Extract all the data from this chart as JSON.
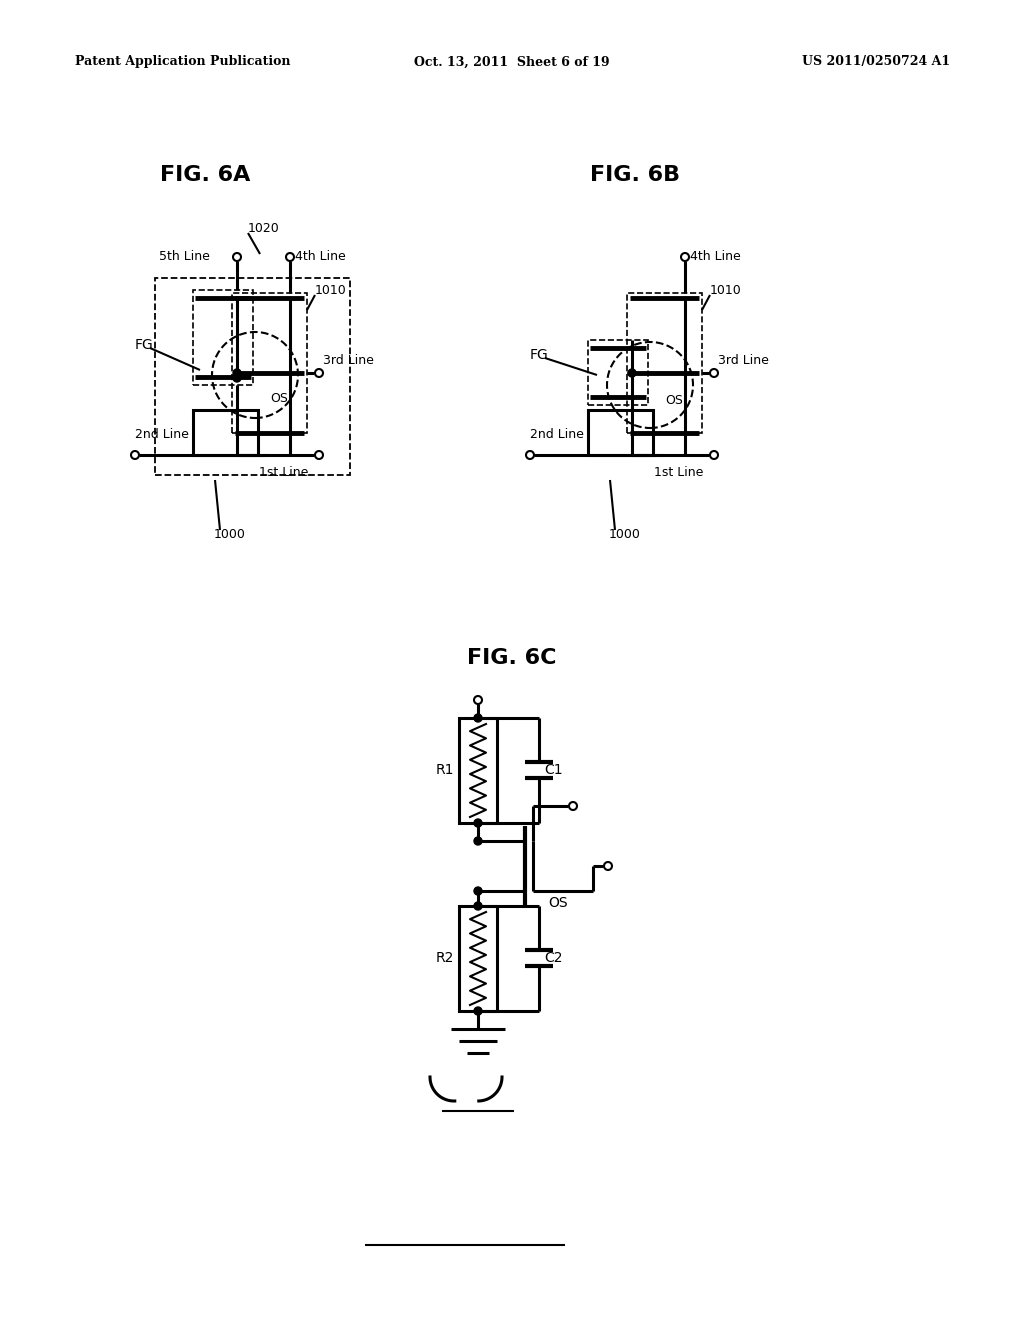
{
  "bg_color": "#ffffff",
  "text_color": "#000000",
  "header_left": "Patent Application Publication",
  "header_center": "Oct. 13, 2011  Sheet 6 of 19",
  "header_right": "US 2011/0250724 A1",
  "fig6a_title": "FIG. 6A",
  "fig6b_title": "FIG. 6B",
  "fig6c_title": "FIG. 6C"
}
